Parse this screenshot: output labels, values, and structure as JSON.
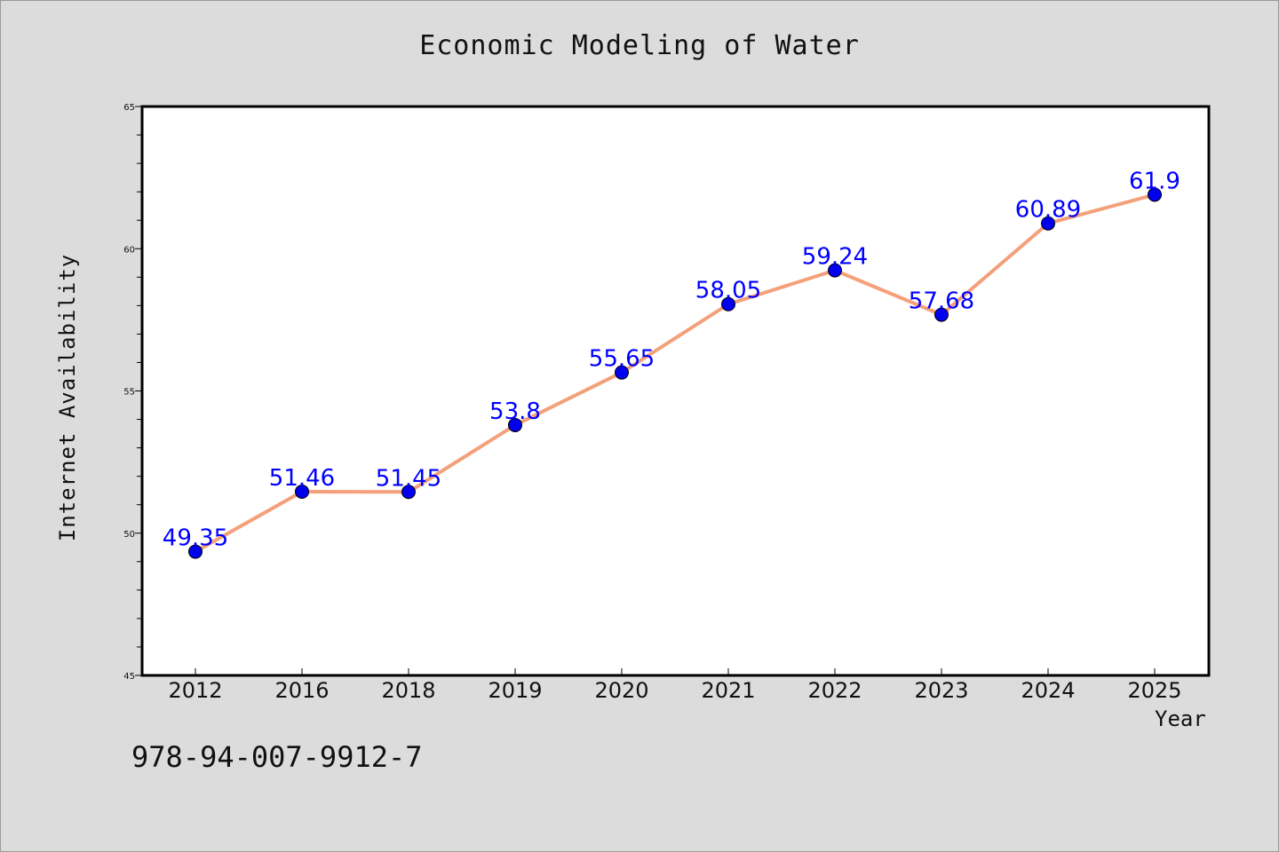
{
  "chart_data": {
    "type": "line",
    "title": "Economic Modeling of Water",
    "xlabel": "Year",
    "ylabel": "Internet Availability",
    "categories": [
      "2012",
      "2016",
      "2018",
      "2019",
      "2020",
      "2021",
      "2022",
      "2023",
      "2024",
      "2025"
    ],
    "values": [
      49.35,
      51.46,
      51.45,
      53.8,
      55.65,
      58.05,
      59.24,
      57.68,
      60.89,
      61.9
    ],
    "data_labels": [
      "49.35",
      "51.46",
      "51.45",
      "53.8",
      "55.65",
      "58.05",
      "59.24",
      "57.68",
      "60.89",
      "61.9"
    ],
    "ylim": [
      45,
      65
    ],
    "yticks": [
      45,
      50,
      55,
      60,
      65
    ],
    "grid": false,
    "line_color": "#f4a07a",
    "marker_color": "#0000ee",
    "label_color": "#0000ff"
  },
  "footer": {
    "isbn": "978-94-007-9912-7"
  }
}
